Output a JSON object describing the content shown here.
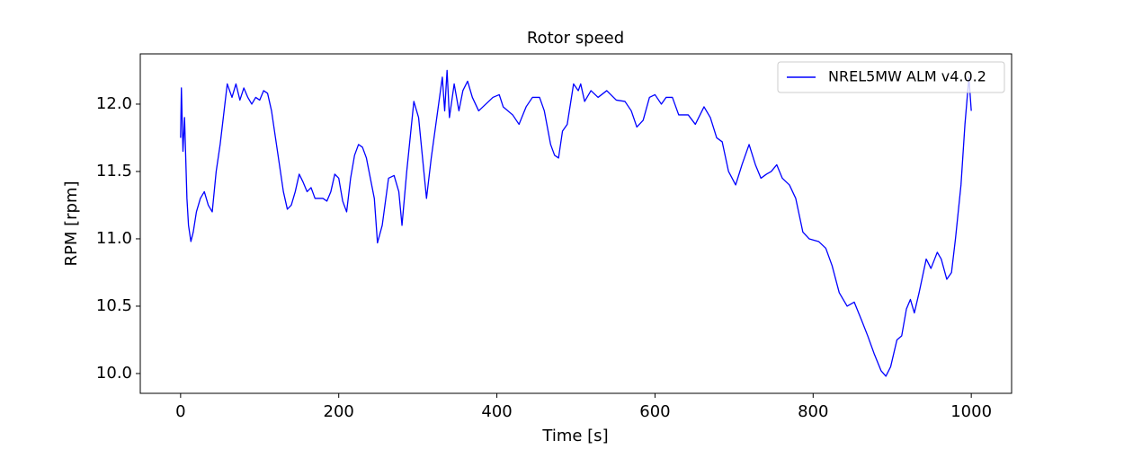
{
  "chart_data": {
    "type": "line",
    "title": "Rotor speed",
    "x_label": "Time [s]",
    "y_label": "RPM [rpm]",
    "x": [
      0,
      1,
      3,
      5,
      8,
      10,
      13,
      16,
      20,
      25,
      30,
      35,
      40,
      45,
      50,
      55,
      59,
      65,
      70,
      75,
      80,
      85,
      90,
      95,
      100,
      105,
      110,
      115,
      120,
      125,
      130,
      135,
      140,
      145,
      150,
      155,
      160,
      165,
      170,
      180,
      185,
      190,
      195,
      200,
      205,
      210,
      215,
      220,
      225,
      230,
      235,
      240,
      245,
      249,
      255,
      263,
      270,
      276,
      280,
      286,
      295,
      301,
      311,
      317,
      324,
      331,
      334,
      337,
      340,
      346,
      352,
      357,
      363,
      369,
      377,
      386,
      395,
      403,
      408,
      420,
      428,
      437,
      445,
      454,
      460,
      468,
      473,
      478,
      483,
      489,
      497,
      503,
      506,
      511,
      519,
      528,
      539,
      551,
      562,
      570,
      577,
      585,
      593,
      600,
      608,
      614,
      622,
      630,
      642,
      651,
      662,
      670,
      678,
      685,
      693,
      702,
      710,
      719,
      727,
      734,
      741,
      747,
      754,
      761,
      770,
      778,
      787,
      795,
      807,
      816,
      824,
      833,
      843,
      852,
      861,
      869,
      877,
      886,
      892,
      898,
      906,
      912,
      918,
      923,
      928,
      934,
      943,
      949,
      957,
      962,
      969,
      975,
      980,
      987,
      992,
      997,
      1000
    ],
    "series": [
      {
        "name": "NREL5MW ALM v4.0.2",
        "color": "#0000ff",
        "values": [
          11.75,
          12.12,
          11.65,
          11.9,
          11.3,
          11.1,
          10.98,
          11.05,
          11.2,
          11.3,
          11.35,
          11.25,
          11.2,
          11.5,
          11.7,
          11.95,
          12.15,
          12.05,
          12.15,
          12.03,
          12.12,
          12.05,
          12.0,
          12.05,
          12.03,
          12.1,
          12.08,
          11.95,
          11.75,
          11.55,
          11.35,
          11.22,
          11.25,
          11.35,
          11.48,
          11.42,
          11.35,
          11.38,
          11.3,
          11.3,
          11.28,
          11.35,
          11.48,
          11.45,
          11.28,
          11.2,
          11.45,
          11.62,
          11.7,
          11.68,
          11.6,
          11.45,
          11.3,
          10.97,
          11.1,
          11.45,
          11.47,
          11.35,
          11.1,
          11.5,
          12.02,
          11.9,
          11.3,
          11.6,
          11.9,
          12.2,
          11.95,
          12.25,
          11.9,
          12.15,
          11.95,
          12.1,
          12.17,
          12.05,
          11.95,
          12.0,
          12.05,
          12.07,
          11.98,
          11.92,
          11.85,
          11.98,
          12.05,
          12.05,
          11.95,
          11.7,
          11.62,
          11.6,
          11.8,
          11.85,
          12.15,
          12.1,
          12.15,
          12.02,
          12.1,
          12.05,
          12.1,
          12.03,
          12.02,
          11.95,
          11.83,
          11.88,
          12.05,
          12.07,
          12.0,
          12.05,
          12.05,
          11.92,
          11.92,
          11.85,
          11.98,
          11.9,
          11.75,
          11.72,
          11.5,
          11.4,
          11.55,
          11.7,
          11.55,
          11.45,
          11.48,
          11.5,
          11.55,
          11.45,
          11.4,
          11.3,
          11.05,
          11.0,
          10.98,
          10.93,
          10.8,
          10.6,
          10.5,
          10.53,
          10.4,
          10.28,
          10.15,
          10.02,
          9.98,
          10.05,
          10.25,
          10.28,
          10.48,
          10.55,
          10.45,
          10.6,
          10.85,
          10.78,
          10.9,
          10.85,
          10.7,
          10.75,
          11.0,
          11.4,
          11.85,
          12.2,
          11.95
        ]
      }
    ],
    "xlim": [
      -51,
      1051
    ],
    "ylim": [
      9.853,
      12.373
    ],
    "xticks": [
      0,
      200,
      400,
      600,
      800,
      1000
    ],
    "yticks": [
      {
        "value": 10,
        "label": "10.0"
      },
      10.5,
      {
        "value": 11,
        "label": "11.0"
      },
      11.5,
      {
        "value": 12,
        "label": "12.0"
      }
    ],
    "legend": "upper right"
  }
}
